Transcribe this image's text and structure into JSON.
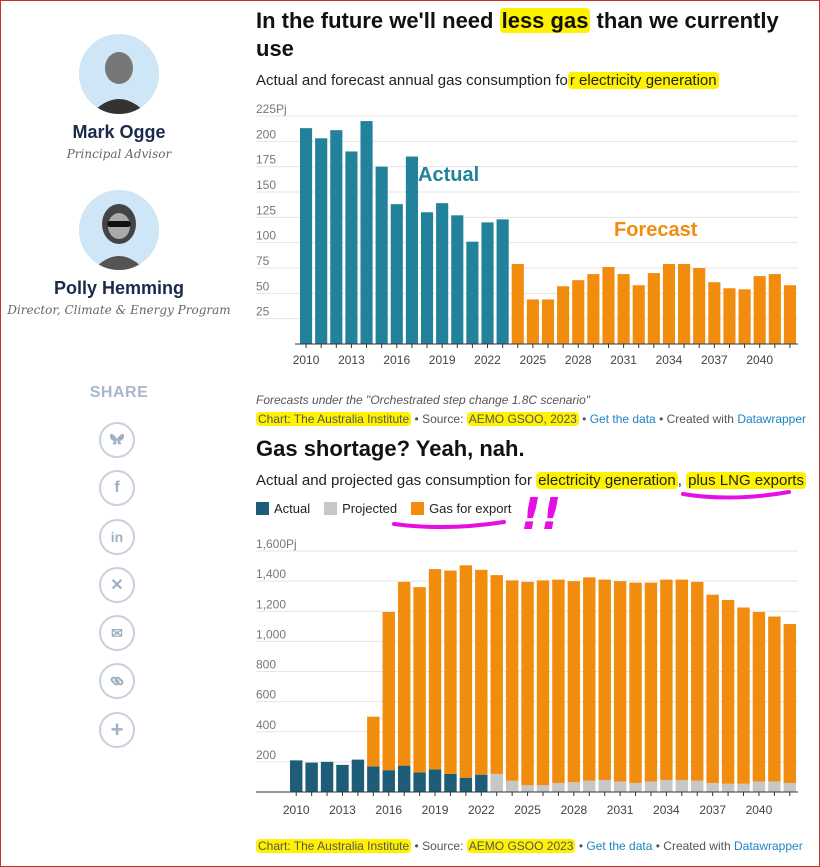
{
  "authors": [
    {
      "name": "Mark Ogge",
      "role": "Principal Advisor"
    },
    {
      "name": "Polly Hemming",
      "role": "Director, Climate & Energy Program"
    }
  ],
  "share": {
    "title": "SHARE",
    "icons": [
      "bluesky-icon",
      "facebook-icon",
      "linkedin-icon",
      "x-icon",
      "email-icon",
      "link-icon",
      "plus-icon"
    ]
  },
  "chart1": {
    "title_pre": "In the future we'll need ",
    "title_hl": "less gas",
    "title_post": " than we currently use",
    "subtitle_pre": "Actual and forecast annual gas consumption fo",
    "subtitle_hl": "r electricity generation",
    "note": "Forecasts under the \"Orchestrated step change 1.8C scenario\"",
    "credit": {
      "chart": "Chart: The Australia Institute",
      "sep1": " • Source: ",
      "source": "AEMO GSOO, 2023",
      "sep2": " • ",
      "getdata": "Get the data",
      "sep3": " • Created with ",
      "dw": "Datawrapper"
    }
  },
  "chart2": {
    "title": "Gas shortage? Yeah, nah.",
    "subtitle_pre": "Actual and projected gas consumption for ",
    "subtitle_hl1": "electricity generation",
    "subtitle_mid": ", ",
    "subtitle_hl2": "plus LNG exports",
    "annotation": "!!",
    "credit": {
      "chart": "Chart: The Australia Institute",
      "sep1": " • Source: ",
      "source": "AEMO GSOO 2023",
      "sep2": " • ",
      "getdata": "Get the data",
      "sep3": " • Created with ",
      "dw": "Datawrapper"
    }
  },
  "colors": {
    "actual1": "#22819b",
    "forecast": "#f28c0f",
    "actual2": "#1d5d78",
    "projected": "#c7c7c7",
    "highlight": "#fff200",
    "marker": "#e60ee2"
  },
  "chart_data": [
    {
      "type": "bar",
      "x": [
        2010,
        2011,
        2012,
        2013,
        2014,
        2015,
        2016,
        2017,
        2018,
        2019,
        2020,
        2021,
        2022,
        2023,
        2024,
        2025,
        2026,
        2027,
        2028,
        2029,
        2030,
        2031,
        2032,
        2033,
        2034,
        2035,
        2036,
        2037,
        2038,
        2039,
        2040,
        2041,
        2042
      ],
      "values": [
        213,
        203,
        211,
        190,
        220,
        175,
        138,
        185,
        130,
        139,
        127,
        101,
        120,
        123,
        79,
        44,
        44,
        57,
        63,
        69,
        76,
        69,
        58,
        70,
        79,
        79,
        75,
        61,
        55,
        54,
        67,
        69,
        58
      ],
      "series_split": {
        "Actual": [
          2010,
          2023
        ],
        "Forecast": [
          2024,
          2042
        ]
      },
      "annotations": [
        "Actual",
        "Forecast"
      ],
      "y_ticks": [
        "225Pj",
        "200",
        "175",
        "150",
        "125",
        "100",
        "75",
        "50",
        "25"
      ],
      "x_ticks": [
        "2010",
        "2013",
        "2016",
        "2019",
        "2022",
        "2025",
        "2028",
        "2031",
        "2034",
        "2037",
        "2040"
      ],
      "ylim": [
        0,
        225
      ]
    },
    {
      "type": "bar",
      "stacked": true,
      "x": [
        2010,
        2011,
        2012,
        2013,
        2014,
        2015,
        2016,
        2017,
        2018,
        2019,
        2020,
        2021,
        2022,
        2023,
        2024,
        2025,
        2026,
        2027,
        2028,
        2029,
        2030,
        2031,
        2032,
        2033,
        2034,
        2035,
        2036,
        2037,
        2038,
        2039,
        2040,
        2041,
        2042
      ],
      "series": [
        {
          "name": "Actual",
          "values": [
            210,
            195,
            200,
            180,
            215,
            170,
            145,
            175,
            130,
            150,
            120,
            95,
            115,
            0,
            0,
            0,
            0,
            0,
            0,
            0,
            0,
            0,
            0,
            0,
            0,
            0,
            0,
            0,
            0,
            0,
            0,
            0,
            0
          ]
        },
        {
          "name": "Projected",
          "values": [
            0,
            0,
            0,
            0,
            0,
            0,
            0,
            0,
            0,
            0,
            0,
            0,
            0,
            120,
            75,
            45,
            45,
            60,
            65,
            75,
            80,
            70,
            60,
            70,
            80,
            80,
            75,
            60,
            55,
            55,
            70,
            70,
            60
          ]
        },
        {
          "name": "Gas for export",
          "values": [
            0,
            0,
            0,
            0,
            0,
            330,
            1050,
            1220,
            1230,
            1330,
            1350,
            1410,
            1360,
            1320,
            1330,
            1350,
            1360,
            1350,
            1335,
            1350,
            1330,
            1330,
            1330,
            1320,
            1330,
            1330,
            1320,
            1250,
            1220,
            1170,
            1125,
            1095,
            1055
          ]
        }
      ],
      "y_ticks": [
        "1,600Pj",
        "1,400",
        "1,200",
        "1,000",
        "800",
        "600",
        "400",
        "200"
      ],
      "x_ticks": [
        "2010",
        "2013",
        "2016",
        "2019",
        "2022",
        "2025",
        "2028",
        "2031",
        "2034",
        "2037",
        "2040"
      ],
      "ylim": [
        0,
        1600
      ]
    }
  ]
}
